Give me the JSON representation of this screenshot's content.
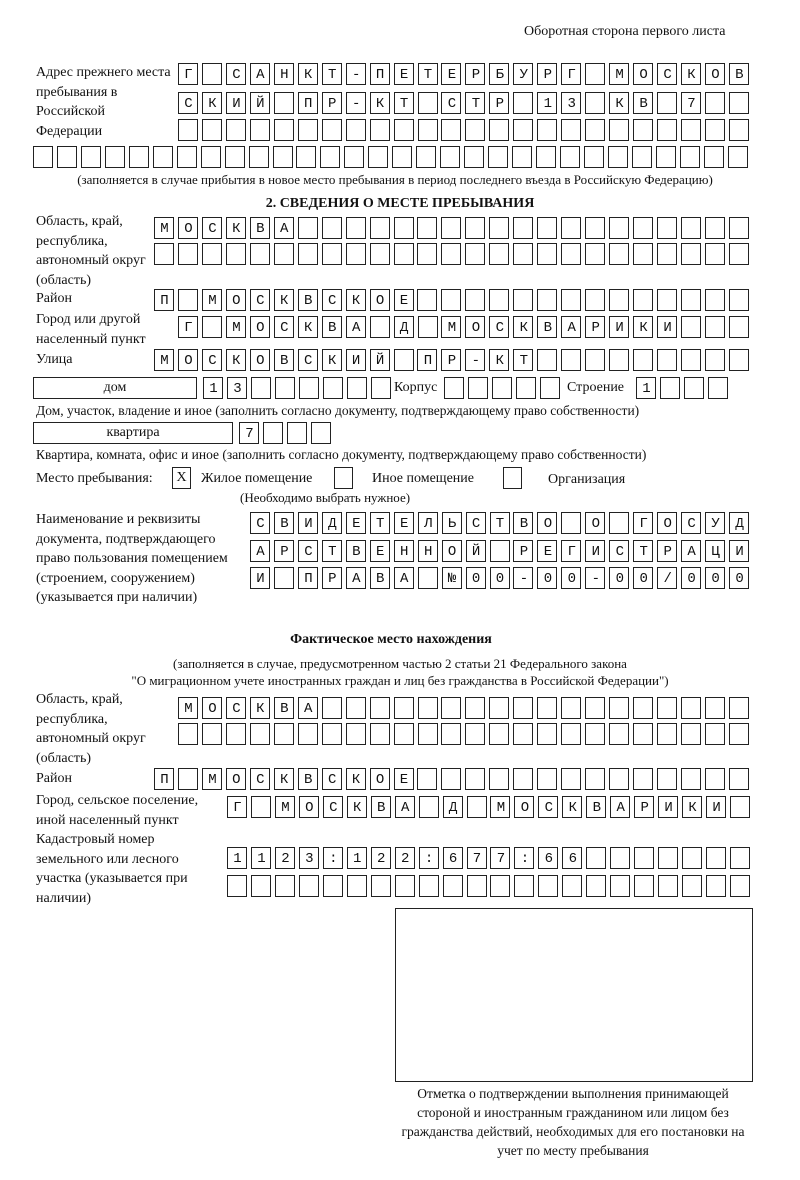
{
  "header": "Оборотная сторона первого листа",
  "prev_address": {
    "label": "Адрес прежнего места пребывания в Российской Федерации",
    "rows": [
      "Г САНКТ-ПЕТЕРБУРГ МОСКОВ",
      "СКИЙ ПР-КТ СТР 13 КВ 7",
      "",
      ""
    ],
    "note": "(заполняется в случае прибытия в новое место пребывания в период последнего въезда в Российскую Федерацию)"
  },
  "section2": {
    "title": "2. СВЕДЕНИЯ О МЕСТЕ ПРЕБЫВАНИЯ",
    "region_label": "Область, край, республика, автономный округ (область)",
    "region": [
      "МОСКВА",
      ""
    ],
    "district_label": "Район",
    "district": "П МОСКВСКОЕ",
    "city_label": "Город или другой населенный пункт",
    "city": "Г МОСКВА Д МОСКВАРИКИ",
    "street_label": "Улица",
    "street": "МОСКОВСКИЙ ПР-КТ",
    "house_type": "дом",
    "house": "13",
    "korpus_label": "Корпус",
    "korpus": "",
    "building_label": "Строение",
    "building": "1",
    "house_note": "Дом, участок, владение и иное (заполнить согласно документу, подтверждающему право собственности)",
    "apt_type": "квартира",
    "apt": "7",
    "apt_note": "Квартира, комната, офис и иное (заполнить согласно документу, подтверждающему право собственности)",
    "stay_label": "Место пребывания:",
    "stay_options": [
      {
        "label": "Жилое помещение",
        "mark": "X"
      },
      {
        "label": "Иное помещение",
        "mark": ""
      },
      {
        "label": "Организация",
        "mark": ""
      }
    ],
    "stay_note": "(Необходимо выбрать нужное)",
    "doc_label": "Наименование и реквизиты документа, подтверждающего право пользования помещением (строением, сооружением) (указывается при наличии)",
    "doc": [
      "СВИДЕТЕЛЬСТВО О ГОСУД",
      "АРСТВЕННОЙ РЕГИСТРАЦИ",
      "И ПРАВА №00-00-00/000"
    ]
  },
  "actual": {
    "title": "Фактическое место нахождения",
    "note1": "(заполняется в случае, предусмотренном частью 2 статьи 21 Федерального закона",
    "note2": "\"О миграционном учете иностранных граждан и лиц без гражданства в Российской Федерации\")",
    "region_label": "Область, край, республика, автономный округ (область)",
    "region": [
      "МОСКВА",
      ""
    ],
    "district_label": "Район",
    "district": "П МОСКВСКОЕ",
    "city_label": "Город, сельское поселение, иной населенный пункт",
    "city": "Г МОСКВА Д МОСКВАРИКИ",
    "cadastral_label": "Кадастровый номер земельного или лесного участка (указывается при наличии)",
    "cadastral": [
      "1123:122:677:66",
      ""
    ]
  },
  "stamp_caption": "Отметка о подтверждении выполнения принимающей стороной и иностранным гражданином или лицом без гражданства действий, необходимых для его постановки на учет по месту пребывания"
}
